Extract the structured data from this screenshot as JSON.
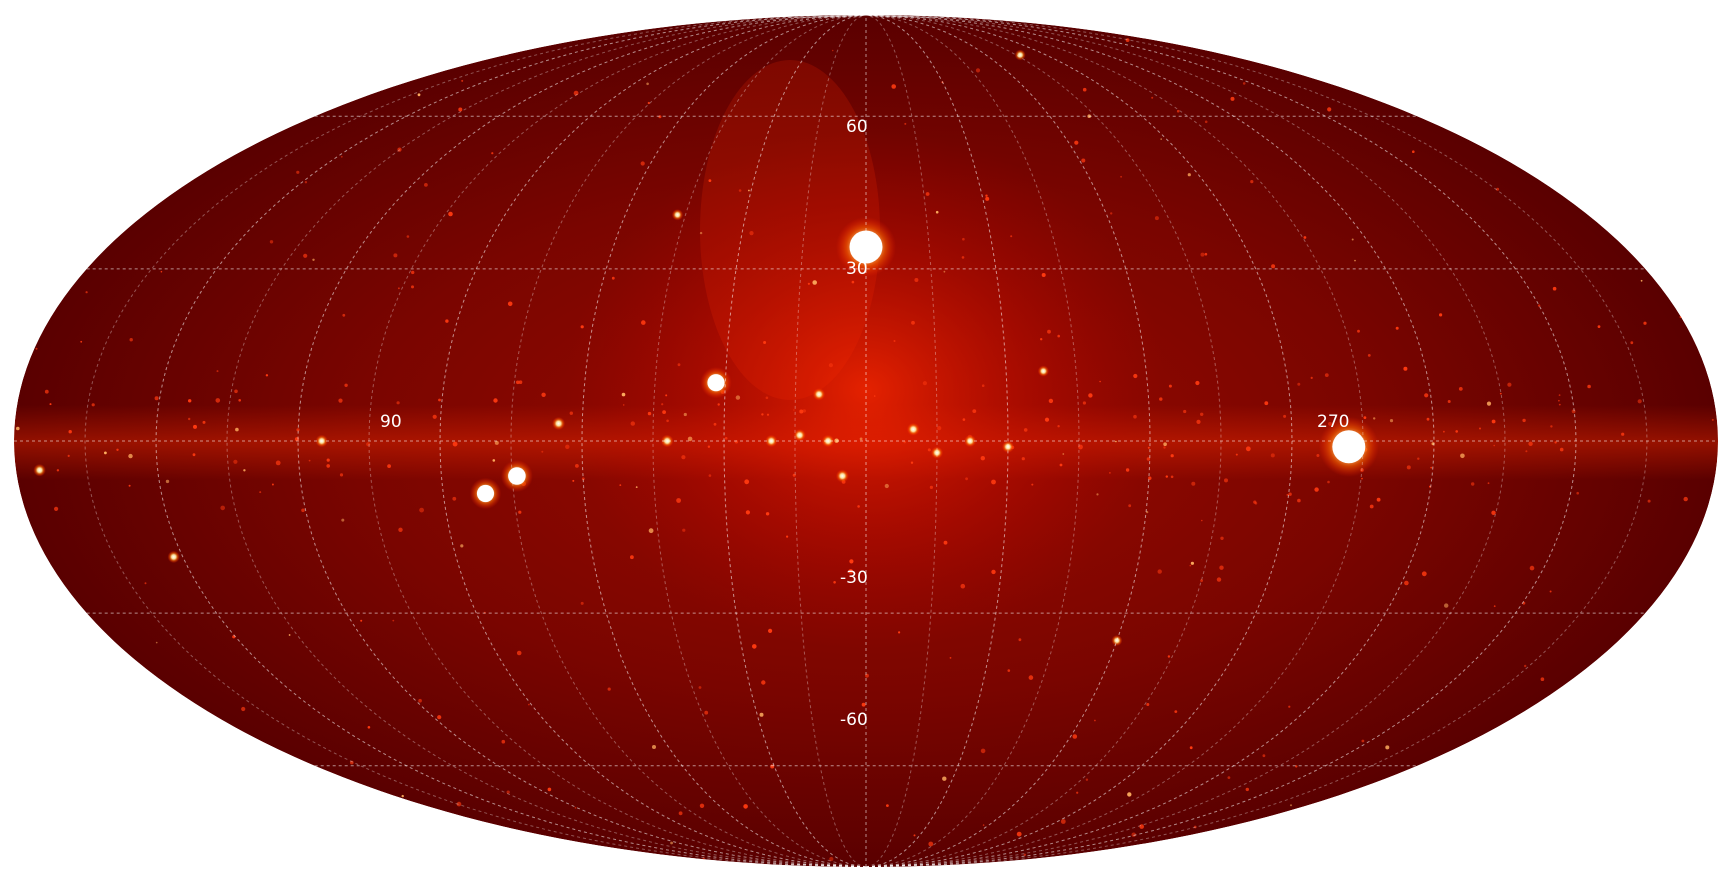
{
  "map": {
    "projection": "Mollweide all-sky",
    "colormap": [
      "#2a0000",
      "#8b0000",
      "#ff2000",
      "#ffd070",
      "#ffffff"
    ],
    "background_color": "#ffffff",
    "grid_line_color": "#ffffff",
    "grid": true,
    "grid_step_deg": 30
  },
  "labels": {
    "lat_60": "60",
    "lat_30": "30",
    "lat_m30": "-30",
    "lat_m60": "-60",
    "lon_90": "90",
    "lon_270": "270"
  },
  "sources": [
    {
      "lon": 0,
      "lat": 34,
      "brightness": 1.0,
      "size": "large"
    },
    {
      "lon": 258,
      "lat": -1,
      "brightness": 1.0,
      "size": "large"
    },
    {
      "lon": 74,
      "lat": -6,
      "brightness": 1.0,
      "size": "medium"
    },
    {
      "lon": 81,
      "lat": -9,
      "brightness": 0.95,
      "size": "medium"
    },
    {
      "lon": 32,
      "lat": 10,
      "brightness": 0.95,
      "size": "medium"
    },
    {
      "lon": 65,
      "lat": 3,
      "brightness": 0.85,
      "size": "small"
    },
    {
      "lon": 42,
      "lat": 0,
      "brightness": 0.8,
      "size": "small"
    },
    {
      "lon": 350,
      "lat": 2,
      "brightness": 0.85,
      "size": "small"
    },
    {
      "lon": 5,
      "lat": -6,
      "brightness": 0.85,
      "size": "small"
    },
    {
      "lon": 8,
      "lat": 0,
      "brightness": 0.8,
      "size": "small"
    },
    {
      "lon": 14,
      "lat": 1,
      "brightness": 0.75,
      "size": "small"
    },
    {
      "lon": 20,
      "lat": 0,
      "brightness": 0.75,
      "size": "small"
    },
    {
      "lon": 10,
      "lat": 8,
      "brightness": 0.75,
      "size": "small"
    },
    {
      "lon": 345,
      "lat": -2,
      "brightness": 0.7,
      "size": "small"
    },
    {
      "lon": 338,
      "lat": 0,
      "brightness": 0.7,
      "size": "small"
    },
    {
      "lon": 330,
      "lat": -1,
      "brightness": 0.7,
      "size": "small"
    },
    {
      "lon": 115,
      "lat": 0,
      "brightness": 0.75,
      "size": "small"
    },
    {
      "lon": 152,
      "lat": -20,
      "brightness": 0.7,
      "size": "small"
    },
    {
      "lon": 175,
      "lat": -5,
      "brightness": 0.75,
      "size": "small"
    },
    {
      "lon": 47,
      "lat": 40,
      "brightness": 0.55,
      "size": "small"
    },
    {
      "lon": 322,
      "lat": 12,
      "brightness": 0.55,
      "size": "small"
    },
    {
      "lon": 300,
      "lat": -35,
      "brightness": 0.45,
      "size": "small"
    },
    {
      "lon": 283,
      "lat": 75,
      "brightness": 0.45,
      "size": "small"
    }
  ]
}
